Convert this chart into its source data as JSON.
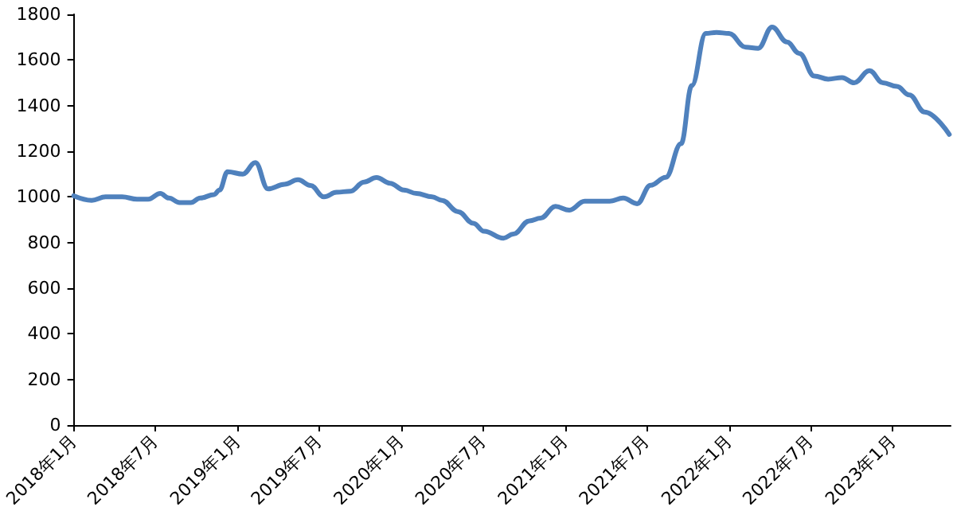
{
  "chart_data": {
    "type": "line",
    "x": [
      "2018-01-01",
      "2018-02-10",
      "2018-03-13",
      "2018-04-19",
      "2018-05-22",
      "2018-06-16",
      "2018-07-13",
      "2018-08-01",
      "2018-08-25",
      "2018-09-19",
      "2018-10-10",
      "2018-11-10",
      "2018-11-22",
      "2018-12-10",
      "2019-01-13",
      "2019-02-10",
      "2019-03-10",
      "2019-04-16",
      "2019-05-16",
      "2019-06-13",
      "2019-07-13",
      "2019-08-10",
      "2019-09-10",
      "2019-10-10",
      "2019-11-07",
      "2019-12-07",
      "2020-01-07",
      "2020-02-04",
      "2020-03-10",
      "2020-04-01",
      "2020-05-07",
      "2020-06-10",
      "2020-07-04",
      "2020-08-16",
      "2020-09-07",
      "2020-10-13",
      "2020-11-07",
      "2020-12-10",
      "2021-01-10",
      "2021-02-13",
      "2021-04-10",
      "2021-05-10",
      "2021-06-10",
      "2021-07-10",
      "2021-08-13",
      "2021-09-16",
      "2021-10-10",
      "2021-11-10",
      "2021-12-04",
      "2022-01-01",
      "2022-02-07",
      "2022-03-07",
      "2022-04-07",
      "2022-05-10",
      "2022-06-07",
      "2022-07-10",
      "2022-08-10",
      "2022-09-10",
      "2022-10-07",
      "2022-11-10",
      "2022-12-10",
      "2023-01-10",
      "2023-02-07",
      "2023-03-13",
      "2023-05-07"
    ],
    "series": [
      {
        "color": "#4f81bd",
        "values": [
          1005,
          985,
          1000,
          1000,
          990,
          990,
          1015,
          995,
          975,
          975,
          995,
          1010,
          1030,
          1110,
          1100,
          1150,
          1035,
          1055,
          1075,
          1050,
          1000,
          1020,
          1025,
          1065,
          1085,
          1060,
          1030,
          1015,
          1000,
          985,
          935,
          884,
          849,
          819,
          837,
          895,
          907,
          958,
          942,
          981,
          981,
          995,
          970,
          1051,
          1086,
          1233,
          1488,
          1716,
          1721,
          1716,
          1656,
          1651,
          1744,
          1679,
          1628,
          1530,
          1516,
          1523,
          1500,
          1553,
          1500,
          1484,
          1447,
          1372,
          1274
        ]
      }
    ],
    "xlim": [
      "2018-01-01",
      "2023-05-10"
    ],
    "xticks": [
      {
        "value": "2018-01",
        "label": "2018年1月"
      },
      {
        "value": "2018-07",
        "label": "2018年7月"
      },
      {
        "value": "2019-01",
        "label": "2019年1月"
      },
      {
        "value": "2019-07",
        "label": "2019年7月"
      },
      {
        "value": "2020-01",
        "label": "2020年1月"
      },
      {
        "value": "2020-07",
        "label": "2020年7月"
      },
      {
        "value": "2021-01",
        "label": "2021年1月"
      },
      {
        "value": "2021-07",
        "label": "2021年7月"
      },
      {
        "value": "2022-01",
        "label": "2022年1月"
      },
      {
        "value": "2022-07",
        "label": "2022年7月"
      },
      {
        "value": "2023-01",
        "label": "2023年1月"
      }
    ],
    "ylim": [
      0,
      1800
    ],
    "yticks": [
      0,
      200,
      400,
      600,
      800,
      1000,
      1200,
      1400,
      1600,
      1800
    ],
    "grid": false,
    "marker": "none",
    "line_style": "solid"
  }
}
